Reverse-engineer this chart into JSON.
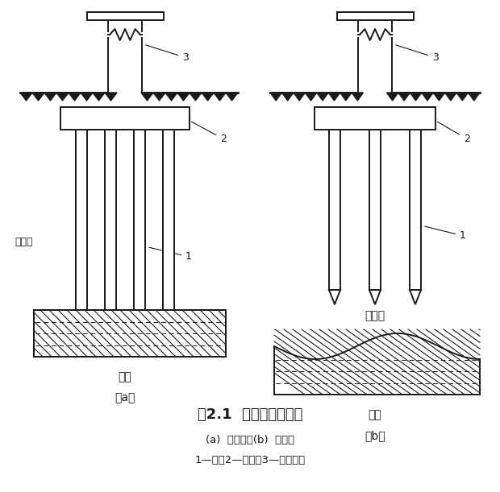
{
  "bg_color": "#ffffff",
  "line_color": "#1a1a1a",
  "title": "图2.1  端承桩与摩擦桩",
  "subtitle": "(a)  端承桩；(b)  摩擦桩",
  "legend": "1—桩；2—承台；3—上部结构",
  "label_a": "（a）",
  "label_b": "（b）",
  "label_soft_a": "软土层",
  "label_hard_a": "硬层",
  "label_soft_b": "软土层",
  "label_hard_b": "硬层",
  "fig_width": 6.2,
  "fig_height": 6.11
}
